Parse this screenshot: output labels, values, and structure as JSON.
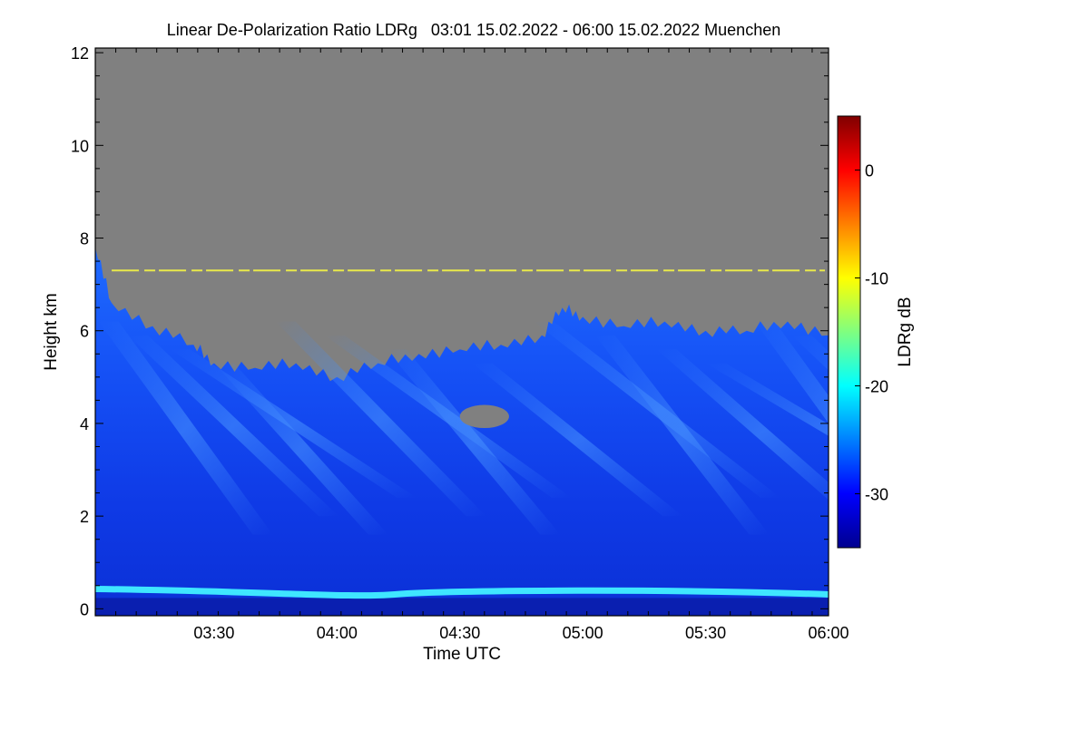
{
  "chart_data": {
    "type": "heatmap",
    "title": "Linear De-Polarization Ratio LDRg   03:01 15.02.2022 - 06:00 15.02.2022 Muenchen",
    "xlabel": "Time UTC",
    "ylabel": "Height km",
    "xlim": [
      "03:01",
      "06:00"
    ],
    "ylim": [
      -0.15,
      12.1
    ],
    "x_ticks": [
      "03:30",
      "04:00",
      "04:30",
      "05:00",
      "05:30",
      "06:00"
    ],
    "y_ticks": [
      0,
      2,
      4,
      6,
      8,
      10,
      12
    ],
    "grid": false,
    "colorbar": {
      "label": "LDRg dB",
      "range": [
        -35,
        5
      ],
      "ticks": [
        0,
        -10,
        -20,
        -30
      ],
      "colormap": "jet"
    },
    "features": {
      "no_signal_color": "#808080",
      "cloud_top_km": {
        "x": [
          "03:01",
          "03:05",
          "03:15",
          "03:25",
          "03:30",
          "03:40",
          "03:50",
          "04:00",
          "04:10",
          "04:20",
          "04:30",
          "04:40",
          "04:50",
          "04:55",
          "05:00",
          "05:10",
          "05:20",
          "05:30",
          "05:40",
          "05:50",
          "06:00"
        ],
        "y": [
          7.8,
          6.6,
          6.1,
          5.7,
          5.3,
          5.2,
          5.3,
          5.0,
          5.3,
          5.5,
          5.6,
          5.7,
          5.9,
          6.5,
          6.3,
          6.1,
          6.2,
          6.0,
          6.0,
          6.2,
          5.9
        ]
      },
      "gray_patch": {
        "x": [
          "04:30",
          "04:42"
        ],
        "y": [
          3.9,
          4.4
        ]
      },
      "near_field_band_km": 0.35,
      "artifact_line_km": 7.3
    }
  }
}
